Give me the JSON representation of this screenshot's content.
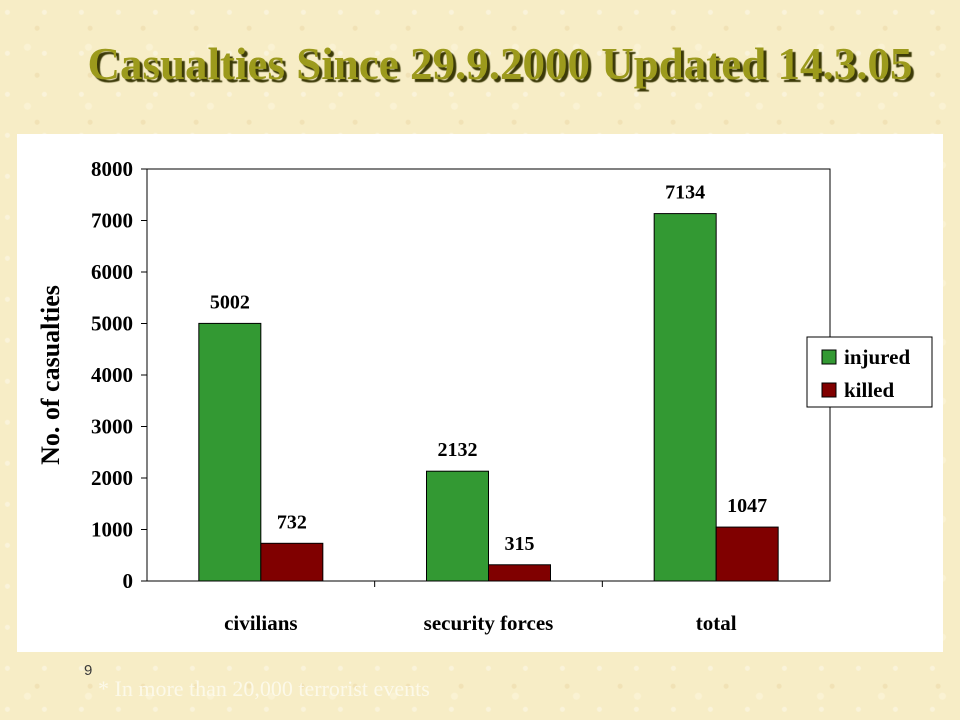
{
  "slide": {
    "title": "Casualties Since 29.9.2000 Updated 14.3.05",
    "number": "9",
    "footnote": "* In more than 20,000 terrorist events"
  },
  "chart_data": {
    "type": "bar",
    "categories": [
      "civilians",
      "security forces",
      "total"
    ],
    "series": [
      {
        "name": "injured",
        "color": "#339933",
        "values": [
          5002,
          2132,
          7134
        ]
      },
      {
        "name": "killed",
        "color": "#800000",
        "values": [
          732,
          315,
          1047
        ]
      }
    ],
    "ylabel": "No. of casualties",
    "ylim": [
      0,
      8000
    ],
    "yticks": [
      0,
      1000,
      2000,
      3000,
      4000,
      5000,
      6000,
      7000,
      8000
    ],
    "legend_position": "right",
    "grid": false
  }
}
